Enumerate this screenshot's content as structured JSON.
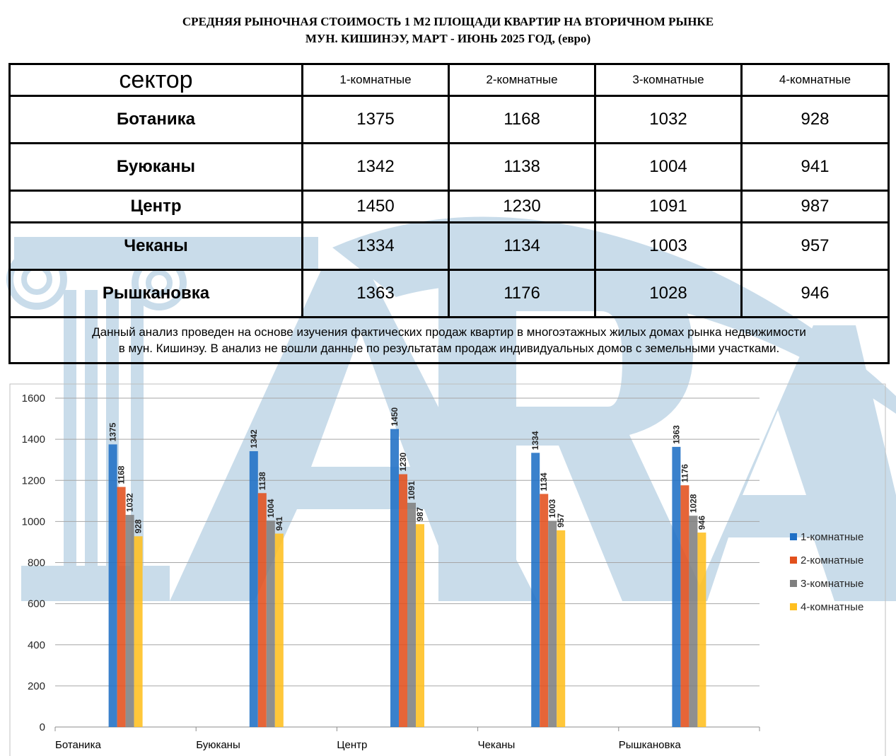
{
  "title_line1": "СРЕДНЯЯ  РЫНОЧНАЯ  СТОИМОСТЬ  1 М2  ПЛОЩАДИ  КВАРТИР НА ВТОРИЧНОМ РЫНКЕ",
  "title_line2": "МУН.  КИШИНЭУ,  МАРТ - ИЮНЬ  2025 ГОД, (евро)",
  "watermark_text": "ARA",
  "table": {
    "headers": [
      "сектор",
      "1-комнатные",
      "2-комнатные",
      "3-комнатные",
      "4-комнатные"
    ],
    "rows": [
      {
        "sector": "Ботаника",
        "values": [
          "1375",
          "1168",
          "1032",
          "928"
        ]
      },
      {
        "sector": "Буюканы",
        "values": [
          "1342",
          "1138",
          "1004",
          "941"
        ]
      },
      {
        "sector": "Центр",
        "values": [
          "1450",
          "1230",
          "1091",
          "987"
        ]
      },
      {
        "sector": "Чеканы",
        "values": [
          "1334",
          "1134",
          "1003",
          "957"
        ]
      },
      {
        "sector": "Рышкановка",
        "values": [
          "1363",
          "1176",
          "1028",
          "946"
        ]
      }
    ],
    "note_line1": "Данный анализ проведен на основе изучения фактических продаж квартир в многоэтажных жилых домах рынка недвижимости",
    "note_line2": "в мун. Кишинэу. В анализ не вошли данные по результатам  продаж индивидуальных домов с земельными участками."
  },
  "chart_data": {
    "type": "bar",
    "categories": [
      "Ботаника",
      "Буюканы",
      "Центр",
      "Чеканы",
      "Рышкановка"
    ],
    "series": [
      {
        "name": "1-комнатные",
        "color": "#1f6fc5",
        "values": [
          1375,
          1342,
          1450,
          1334,
          1363
        ]
      },
      {
        "name": "2-комнатные",
        "color": "#e2501c",
        "values": [
          1168,
          1138,
          1230,
          1134,
          1176
        ]
      },
      {
        "name": "3-комнатные",
        "color": "#7f7f7f",
        "values": [
          1032,
          1004,
          1091,
          1003,
          1028
        ]
      },
      {
        "name": "4-комнатные",
        "color": "#ffbf1f",
        "values": [
          928,
          941,
          987,
          957,
          946
        ]
      }
    ],
    "yticks": [
      "0",
      "200",
      "400",
      "600",
      "800",
      "1000",
      "1200",
      "1400",
      "1600"
    ],
    "ylim": [
      0,
      1600
    ],
    "grid": true,
    "legend_position": "right",
    "data_labels": true
  }
}
